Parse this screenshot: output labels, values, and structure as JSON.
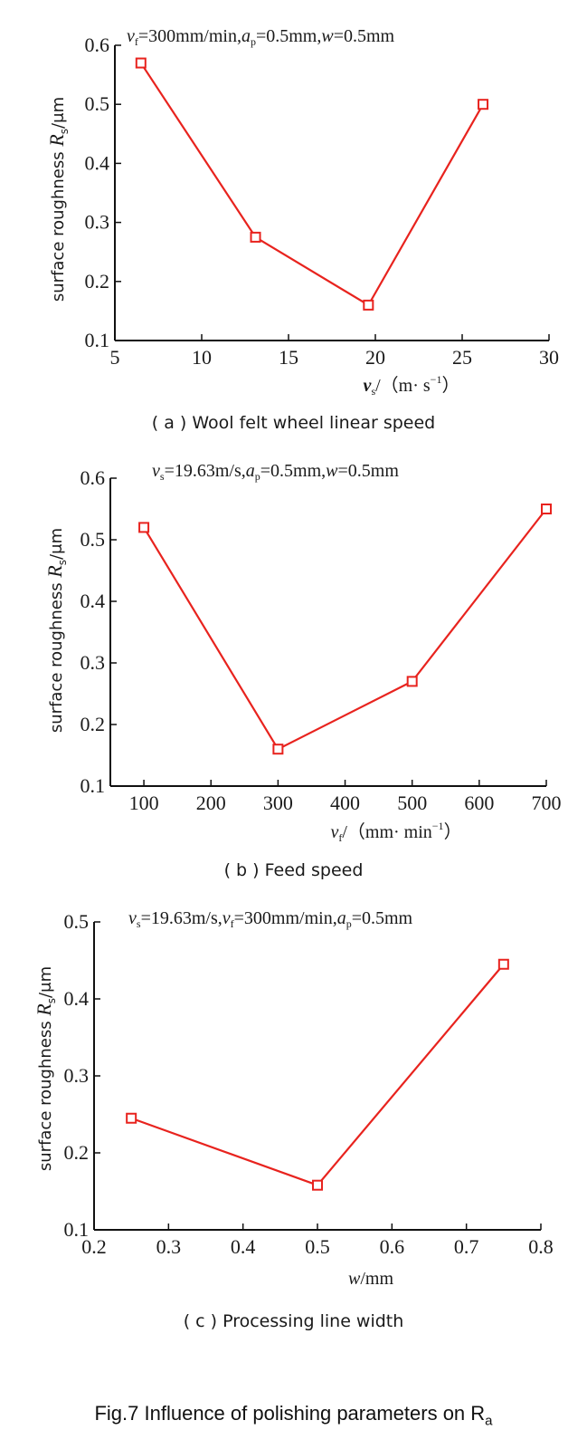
{
  "figure_caption": "Fig.7 Influence of polishing parameters on R",
  "figure_caption_sub": "a",
  "chart_data": [
    {
      "type": "line",
      "title": "vf=300mm/min,ap=0.5mm,w=0.5mm",
      "ylabel": "surface roughness Rs/μm",
      "xlabel": "vs/(m·s⁻¹)",
      "caption": "( a ) Wool felt wheel linear speed",
      "x": [
        6.5,
        13.1,
        19.6,
        26.2
      ],
      "y": [
        0.57,
        0.275,
        0.16,
        0.5
      ],
      "xlim": [
        5,
        30
      ],
      "ylim": [
        0.1,
        0.6
      ],
      "xticks": [
        5,
        10,
        15,
        20,
        25,
        30
      ],
      "xtick_labels": [
        "5",
        "10",
        "15",
        "20",
        "25",
        "30"
      ],
      "yticks": [
        0.1,
        0.2,
        0.3,
        0.4,
        0.5,
        0.6
      ],
      "ytick_labels": [
        "0.1",
        "0.2",
        "0.3",
        "0.4",
        "0.5",
        "0.6"
      ],
      "line_color": "#e8231e",
      "marker": "square"
    },
    {
      "type": "line",
      "title": "vs=19.63m/s,ap=0.5mm,w=0.5mm",
      "ylabel": "surface roughness Rs/μm",
      "xlabel": "vf/(mm·min⁻¹)",
      "caption": "( b ) Feed speed",
      "x": [
        100,
        300,
        500,
        700
      ],
      "y": [
        0.52,
        0.16,
        0.27,
        0.55
      ],
      "xlim": [
        50,
        700
      ],
      "ylim": [
        0.1,
        0.6
      ],
      "xticks": [
        100,
        200,
        300,
        400,
        500,
        600,
        700
      ],
      "xtick_labels": [
        "100",
        "200",
        "300",
        "400",
        "500",
        "600",
        "700"
      ],
      "yticks": [
        0.1,
        0.2,
        0.3,
        0.4,
        0.5,
        0.6
      ],
      "ytick_labels": [
        "0.1",
        "0.2",
        "0.3",
        "0.4",
        "0.5",
        "0.6"
      ],
      "line_color": "#e8231e",
      "marker": "square"
    },
    {
      "type": "line",
      "title": "vs=19.63m/s,vf=300mm/min,ap=0.5mm",
      "ylabel": "surface roughness Rs/μm",
      "xlabel": "w/mm",
      "caption": "( c ) Processing line width",
      "x": [
        0.25,
        0.5,
        0.75
      ],
      "y": [
        0.245,
        0.158,
        0.445
      ],
      "xlim": [
        0.2,
        0.8
      ],
      "ylim": [
        0.1,
        0.5
      ],
      "xticks": [
        0.2,
        0.3,
        0.4,
        0.5,
        0.6,
        0.7,
        0.8
      ],
      "xtick_labels": [
        "0.2",
        "0.3",
        "0.4",
        "0.5",
        "0.6",
        "0.7",
        "0.8"
      ],
      "yticks": [
        0.1,
        0.2,
        0.3,
        0.4,
        0.5
      ],
      "ytick_labels": [
        "0.1",
        "0.2",
        "0.3",
        "0.4",
        "0.5"
      ],
      "line_color": "#e8231e",
      "marker": "square"
    }
  ]
}
